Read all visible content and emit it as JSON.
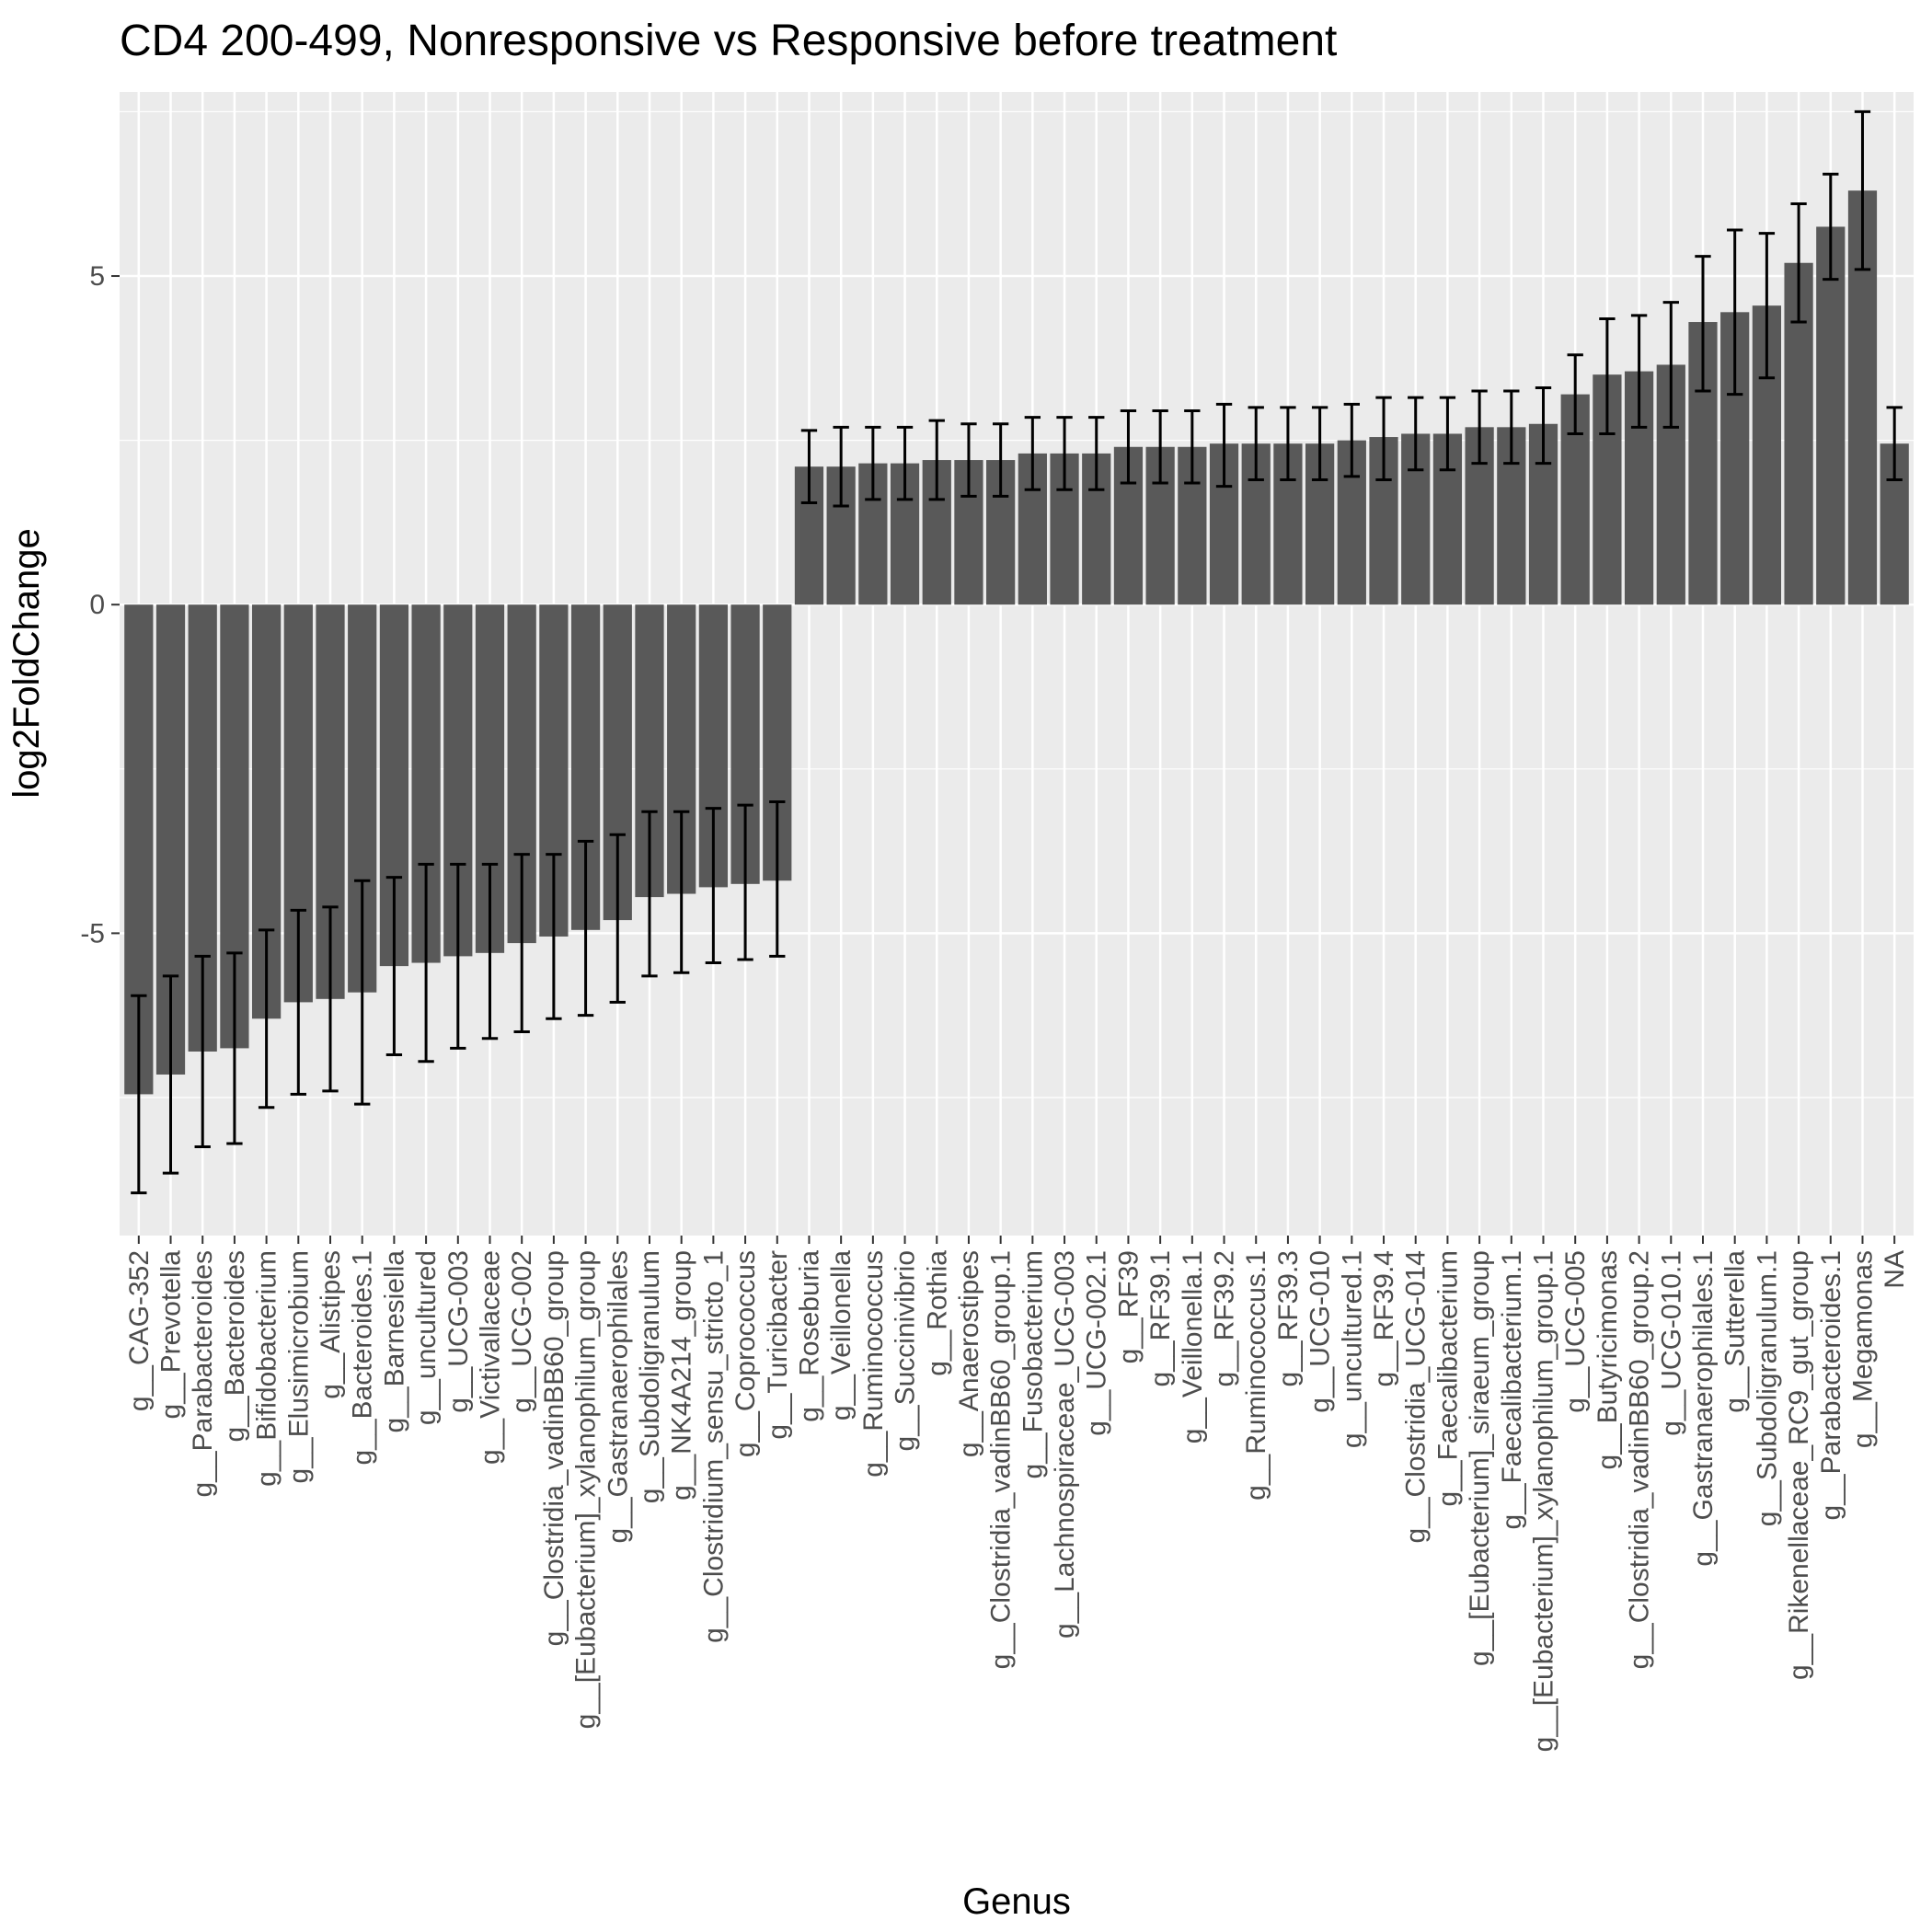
{
  "chart_data": {
    "type": "bar",
    "title": "CD4 200-499, Nonresponsive vs Responsive before treatment",
    "xlabel": "Genus",
    "ylabel": "log2FoldChange",
    "ylim": [
      -9.6,
      7.8
    ],
    "yticks": [
      -5,
      0,
      5
    ],
    "grid": true,
    "error_bars": true,
    "colors": {
      "panel": "#ebebeb",
      "grid_major": "#ffffff",
      "bar": "#595959",
      "errorbar": "#000000",
      "tick_label": "#4d4d4d"
    },
    "categories": [
      "g__CAG-352",
      "g__Prevotella",
      "g__Parabacteroides",
      "g__Bacteroides",
      "g__Bifidobacterium",
      "g__Elusimicrobium",
      "g__Alistipes",
      "g__Bacteroides.1",
      "g__Barnesiella",
      "g__uncultured",
      "g__UCG-003",
      "g__Victivallaceae",
      "g__UCG-002",
      "g__Clostridia_vadinBB60_group",
      "g__[Eubacterium]_xylanophilum_group",
      "g__Gastranaerophilales",
      "g__Subdoligranulum",
      "g__NK4A214_group",
      "g__Clostridium_sensu_stricto_1",
      "g__Coprococcus",
      "g__Turicibacter",
      "g__Roseburia",
      "g__Veillonella",
      "g__Ruminococcus",
      "g__Succinivibrio",
      "g__Rothia",
      "g__Anaerostipes",
      "g__Clostridia_vadinBB60_group.1",
      "g__Fusobacterium",
      "g__Lachnospiraceae_UCG-003",
      "g__UCG-002.1",
      "g__RF39",
      "g__RF39.1",
      "g__Veillonella.1",
      "g__RF39.2",
      "g__Ruminococcus.1",
      "g__RF39.3",
      "g__UCG-010",
      "g__uncultured.1",
      "g__RF39.4",
      "g__Clostridia_UCG-014",
      "g__Faecalibacterium",
      "g__[Eubacterium]_siraeum_group",
      "g__Faecalibacterium.1",
      "g__[Eubacterium]_xylanophilum_group.1",
      "g__UCG-005",
      "g__Butyricimonas",
      "g__Clostridia_vadinBB60_group.2",
      "g__UCG-010.1",
      "g__Gastranaerophilales.1",
      "g__Sutterella",
      "g__Subdoligranulum.1",
      "g__Rikenellaceae_RC9_gut_group",
      "g__Parabacteroides.1",
      "g__Megamonas",
      "NA"
    ],
    "values": [
      -7.45,
      -7.15,
      -6.8,
      -6.75,
      -6.3,
      -6.05,
      -6.0,
      -5.9,
      -5.5,
      -5.45,
      -5.35,
      -5.3,
      -5.15,
      -5.05,
      -4.95,
      -4.8,
      -4.45,
      -4.4,
      -4.3,
      -4.25,
      -4.2,
      2.1,
      2.1,
      2.15,
      2.15,
      2.2,
      2.2,
      2.2,
      2.3,
      2.3,
      2.3,
      2.4,
      2.4,
      2.4,
      2.45,
      2.45,
      2.45,
      2.45,
      2.5,
      2.55,
      2.6,
      2.6,
      2.7,
      2.7,
      2.75,
      3.2,
      3.5,
      3.55,
      3.65,
      4.3,
      4.45,
      4.55,
      5.2,
      5.75,
      6.3,
      2.45
    ],
    "error_low": [
      -8.95,
      -8.65,
      -8.25,
      -8.2,
      -7.65,
      -7.45,
      -7.4,
      -7.6,
      -6.85,
      -6.95,
      -6.75,
      -6.6,
      -6.5,
      -6.3,
      -6.25,
      -6.05,
      -5.65,
      -5.6,
      -5.45,
      -5.4,
      -5.35,
      1.55,
      1.5,
      1.6,
      1.6,
      1.6,
      1.65,
      1.65,
      1.75,
      1.75,
      1.75,
      1.85,
      1.85,
      1.85,
      1.8,
      1.9,
      1.9,
      1.9,
      1.95,
      1.9,
      2.05,
      2.05,
      2.15,
      2.15,
      2.15,
      2.6,
      2.6,
      2.7,
      2.7,
      3.25,
      3.2,
      3.45,
      4.3,
      4.95,
      5.1,
      1.9
    ],
    "error_high": [
      -5.95,
      -5.65,
      -5.35,
      -5.3,
      -4.95,
      -4.65,
      -4.6,
      -4.2,
      -4.15,
      -3.95,
      -3.95,
      -3.95,
      -3.8,
      -3.8,
      -3.6,
      -3.5,
      -3.15,
      -3.15,
      -3.1,
      -3.05,
      -3.0,
      2.65,
      2.7,
      2.7,
      2.7,
      2.8,
      2.75,
      2.75,
      2.85,
      2.85,
      2.85,
      2.95,
      2.95,
      2.95,
      3.05,
      3.0,
      3.0,
      3.0,
      3.05,
      3.15,
      3.15,
      3.15,
      3.25,
      3.25,
      3.3,
      3.8,
      4.35,
      4.4,
      4.6,
      5.3,
      5.7,
      5.65,
      6.1,
      6.55,
      7.5,
      3.0
    ]
  }
}
